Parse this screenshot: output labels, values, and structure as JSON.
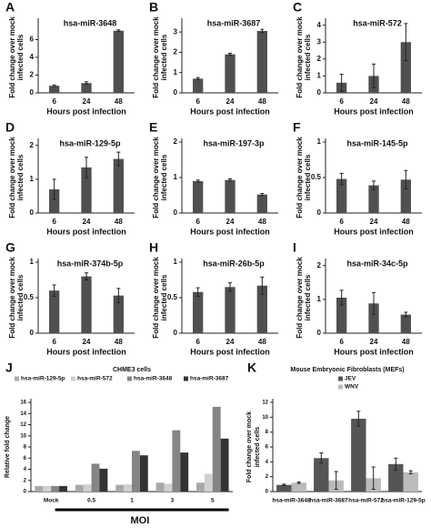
{
  "chart_data": [
    {
      "type": "bar",
      "label": "A",
      "title": "hsa-miR-3648",
      "ylabel": [
        "Fold change over mock",
        "infected cells"
      ],
      "xlabel": "Hours post infection",
      "categories": [
        "6",
        "24",
        "48"
      ],
      "values": [
        0.8,
        1.1,
        7.0
      ],
      "errors": [
        0.1,
        0.15,
        0.1
      ],
      "color": "#505050",
      "ylim": [
        0,
        8
      ],
      "yticks": [
        0,
        2,
        4,
        6
      ]
    },
    {
      "type": "bar",
      "label": "B",
      "title": "hsa-miR-3687",
      "ylabel": [
        "Fold change over mock",
        "infected cells"
      ],
      "xlabel": "Hours post infection",
      "categories": [
        "6",
        "24",
        "48"
      ],
      "values": [
        0.7,
        1.9,
        3.05
      ],
      "errors": [
        0.05,
        0.05,
        0.08
      ],
      "color": "#505050",
      "ylim": [
        0,
        3.5
      ],
      "yticks": [
        0,
        1,
        2,
        3
      ]
    },
    {
      "type": "bar",
      "label": "C",
      "title": "hsa-miR-572",
      "ylabel": [
        "Fold change over mock",
        "infected cells"
      ],
      "xlabel": "Hours post infection",
      "categories": [
        "6",
        "24",
        "48"
      ],
      "values": [
        0.6,
        1.0,
        3.0
      ],
      "errors": [
        0.5,
        0.7,
        1.1
      ],
      "color": "#505050",
      "ylim": [
        0,
        4.2
      ],
      "yticks": [
        0,
        1,
        2,
        3,
        4
      ]
    },
    {
      "type": "bar",
      "label": "D",
      "title": "hsa-miR-129-5p",
      "ylabel": [
        "Fold change over mock",
        "infected cells"
      ],
      "xlabel": "Hours post infection",
      "categories": [
        "6",
        "24",
        "48"
      ],
      "values": [
        0.7,
        1.35,
        1.6
      ],
      "errors": [
        0.3,
        0.3,
        0.2
      ],
      "color": "#505050",
      "ylim": [
        0,
        2.1
      ],
      "yticks": [
        0,
        1,
        2
      ]
    },
    {
      "type": "bar",
      "label": "E",
      "title": "hsa-miR-197-3p",
      "ylabel": [
        "Fold change over mock",
        "infected cells"
      ],
      "xlabel": "Hours post infection",
      "categories": [
        "6",
        "24",
        "48"
      ],
      "values": [
        0.9,
        0.93,
        0.52
      ],
      "errors": [
        0.03,
        0.03,
        0.03
      ],
      "color": "#505050",
      "ylim": [
        0,
        2
      ],
      "yticks": [
        0,
        1,
        2
      ]
    },
    {
      "type": "bar",
      "label": "F",
      "title": "hsa-miR-145-5p",
      "ylabel": [
        "Fold change over mock",
        "infected cells"
      ],
      "xlabel": "Hours post infection",
      "categories": [
        "6",
        "24",
        "48"
      ],
      "values": [
        0.48,
        0.39,
        0.47
      ],
      "errors": [
        0.08,
        0.06,
        0.13
      ],
      "color": "#505050",
      "ylim": [
        0,
        1
      ],
      "yticks": [
        0,
        0.5,
        1
      ]
    },
    {
      "type": "bar",
      "label": "G",
      "title": "hsa-miR-374b-5p",
      "ylabel": [
        "Fold change over mock",
        "infected cells"
      ],
      "xlabel": "Hours post infection",
      "categories": [
        "6",
        "24",
        "48"
      ],
      "values": [
        0.6,
        0.8,
        0.53
      ],
      "errors": [
        0.08,
        0.05,
        0.1
      ],
      "color": "#505050",
      "ylim": [
        0,
        1
      ],
      "yticks": [
        0,
        0.5,
        1
      ]
    },
    {
      "type": "bar",
      "label": "H",
      "title": "hsa-miR-26b-5p",
      "ylabel": [
        "Fold change over mock",
        "infected cells"
      ],
      "xlabel": "Hours post infection",
      "categories": [
        "6",
        "24",
        "48"
      ],
      "values": [
        0.58,
        0.65,
        0.67
      ],
      "errors": [
        0.06,
        0.06,
        0.12
      ],
      "color": "#505050",
      "ylim": [
        0,
        1
      ],
      "yticks": [
        0,
        0.5,
        1
      ]
    },
    {
      "type": "bar",
      "label": "I",
      "title": "hsa-miR-34c-5p",
      "ylabel": [
        "Fold change over mock",
        "infected cells"
      ],
      "xlabel": "Hours post infection",
      "categories": [
        "6",
        "24",
        "48"
      ],
      "values": [
        1.05,
        0.88,
        0.55
      ],
      "errors": [
        0.22,
        0.32,
        0.07
      ],
      "color": "#505050",
      "ylim": [
        0,
        2.1
      ],
      "yticks": [
        0,
        1,
        2
      ]
    },
    {
      "type": "bar",
      "label": "J",
      "title": "CHME3 cells",
      "ylabel": [
        "Relative fold change"
      ],
      "xlabel": "MOI",
      "categories": [
        "Mock",
        "0.5",
        "1",
        "3",
        "5"
      ],
      "series": [
        {
          "name": "hsa-miR-129-5p",
          "color": "#a8a8a8",
          "values": [
            1,
            1.2,
            1.2,
            1.6,
            1.6
          ]
        },
        {
          "name": "hsa-miR-572",
          "color": "#d0d0d0",
          "values": [
            1,
            1.3,
            1.3,
            1.4,
            3.2
          ]
        },
        {
          "name": "hsa-miR-3648",
          "color": "#858585",
          "values": [
            1,
            5.0,
            7.3,
            11,
            15.2
          ]
        },
        {
          "name": "hsa-miR-3687",
          "color": "#333333",
          "values": [
            1,
            4.1,
            6.5,
            7.0,
            9.5
          ]
        }
      ],
      "ylim": [
        0,
        16
      ],
      "yticks": [
        0,
        2,
        4,
        6,
        8,
        10,
        12,
        14,
        16
      ]
    },
    {
      "type": "bar",
      "label": "K",
      "title": "Mouse Embryonic Fibroblasts (MEFs)",
      "ylabel": [
        "Fold change over mock",
        "infected cells"
      ],
      "categories": [
        "hsa-miR-3648",
        "hsa-miR-3687",
        "hsa-miR-572",
        "hsa-miR-129-5p"
      ],
      "series": [
        {
          "name": "JEV",
          "color": "#555555",
          "values": [
            0.9,
            4.5,
            9.8,
            3.7
          ],
          "errors": [
            0.1,
            0.7,
            1.0,
            0.8
          ]
        },
        {
          "name": "WNV",
          "color": "#bbbbbb",
          "values": [
            1.2,
            1.5,
            1.8,
            2.6
          ],
          "errors": [
            0.1,
            1.2,
            1.5,
            0.2
          ]
        }
      ],
      "ylim": [
        0,
        12
      ],
      "yticks": [
        0,
        2,
        4,
        6,
        8,
        10,
        12
      ]
    }
  ]
}
